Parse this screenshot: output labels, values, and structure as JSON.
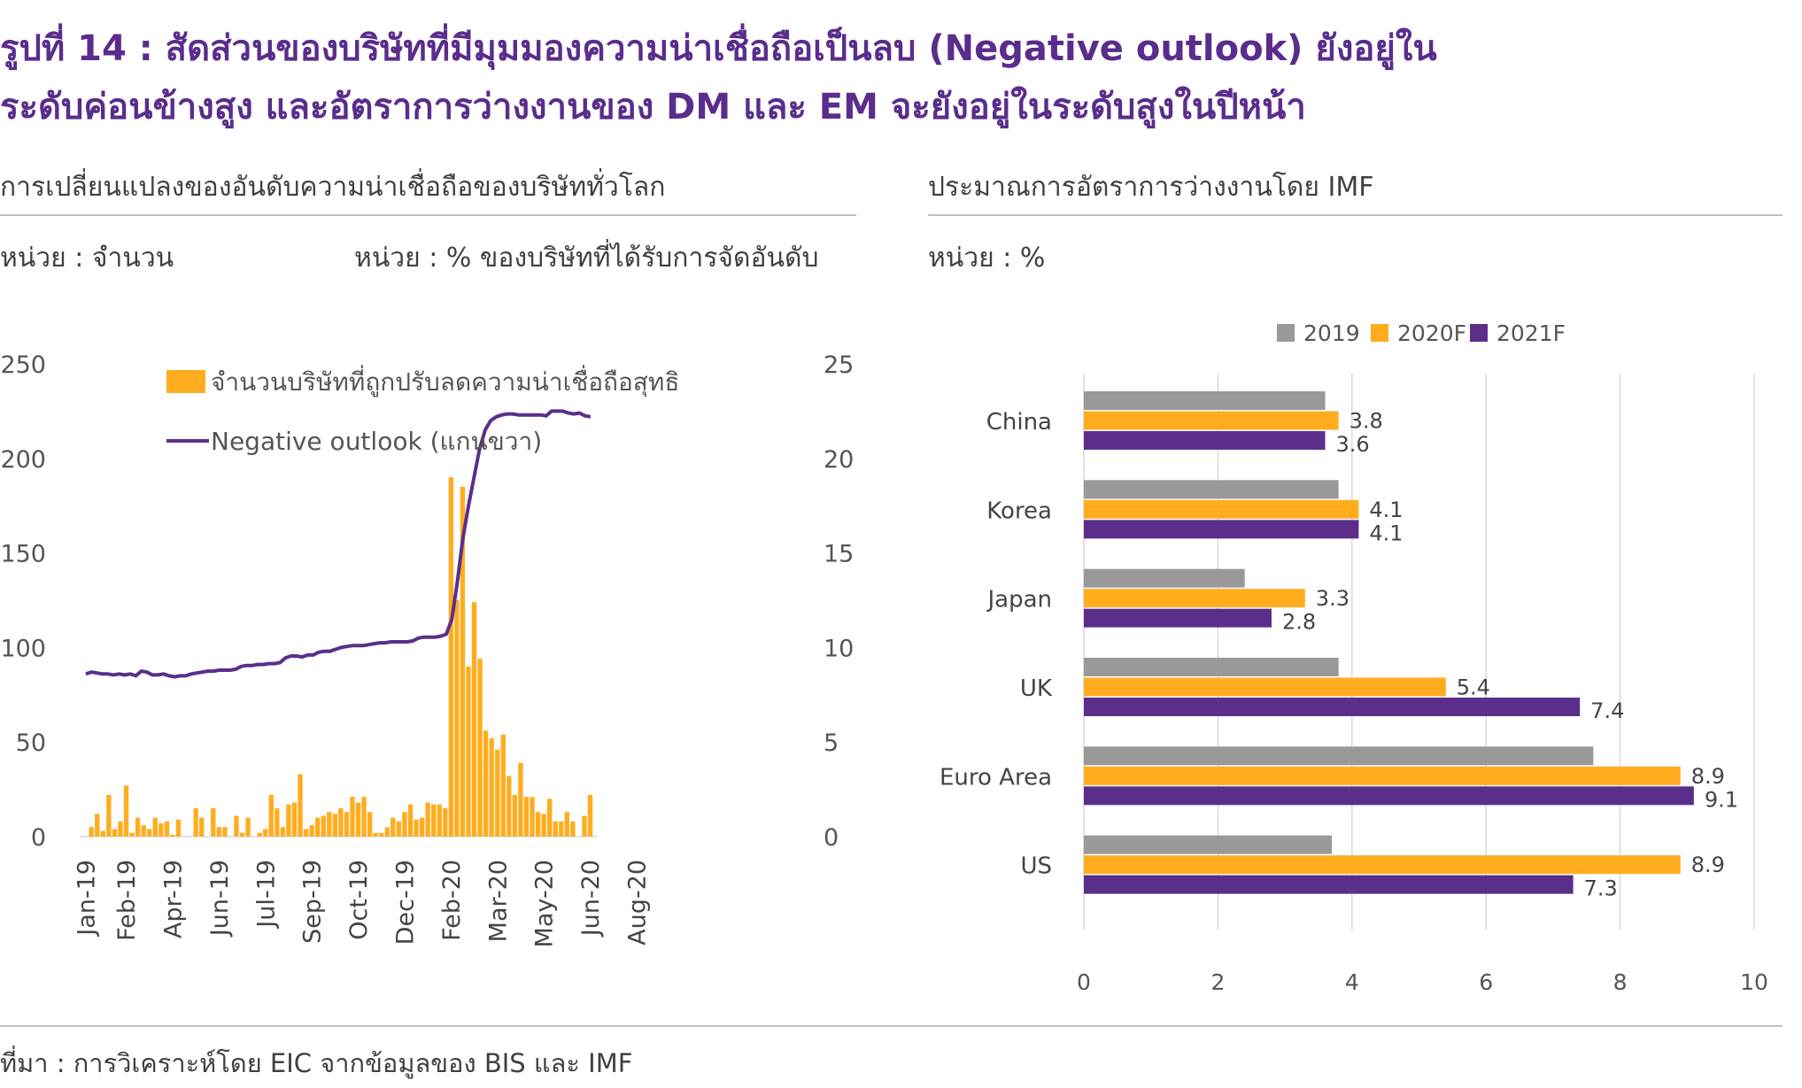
{
  "header": {
    "title_line1": "รูปที่ 14 : สัดส่วนของบริษัทที่มีมุมมองความน่าเชื่อถือเป็นลบ (Negative outlook) ยังอยู่ใน",
    "title_line2": "ระดับค่อนข้างสูง และอัตราการว่างงานของ DM และ EM จะยังอยู่ในระดับสูงในปีหน้า"
  },
  "left_panel": {
    "title": "การเปลี่ยนแปลงของอันดับความน่าเชื่อถือของบริษัททั่วโลก",
    "unit_left": "หน่วย : จำนวน",
    "unit_right": "หน่วย : % ของบริษัทที่ได้รับการจัดอันดับ"
  },
  "right_panel": {
    "title": "ประมาณการอัตราการว่างงานโดย IMF",
    "unit": "หน่วย : %"
  },
  "source": "ที่มา : การวิเคราะห์โดย EIC จากข้อมูลของ BIS และ IMF",
  "colors": {
    "gray": "#999999",
    "orange": "#ffad1f",
    "purple": "#5b2e8c",
    "title": "#5a2d8c"
  },
  "chart_data": [
    {
      "type": "bar",
      "legend": [
        "จำนวนบริษัทที่ถูกปรับลดความน่าเชื่อถือสุทธิ",
        "Negative outlook (แกนขวา)"
      ],
      "legend_position": "top-left",
      "x_tick_labels": [
        "Jan-19",
        "Feb-19",
        "Apr-19",
        "Jun-19",
        "Jul-19",
        "Sep-19",
        "Oct-19",
        "Dec-19",
        "Feb-20",
        "Mar-20",
        "May-20",
        "Jun-20",
        "Aug-20"
      ],
      "x_tick_index": [
        0,
        7,
        15,
        23,
        31,
        39,
        47,
        55,
        63,
        71,
        79,
        87,
        95
      ],
      "y_left": {
        "ticks": [
          "0",
          "50",
          "100",
          "150",
          "200",
          "250"
        ],
        "range": [
          0,
          250
        ]
      },
      "y_right": {
        "ticks": [
          "0",
          "5",
          "10",
          "15",
          "20",
          "25"
        ],
        "range": [
          0,
          25
        ]
      },
      "series": [
        {
          "chart_type": "bar",
          "axis": "left",
          "values": [
            0,
            5,
            12,
            3,
            22,
            4,
            8,
            27,
            2,
            10,
            6,
            4,
            10,
            7,
            8,
            1,
            9,
            0,
            0,
            15,
            10,
            0,
            15,
            5,
            5,
            0,
            11,
            2,
            10,
            0,
            2,
            4,
            22,
            15,
            5,
            17,
            18,
            33,
            4,
            6,
            10,
            11,
            13,
            12,
            15,
            13,
            21,
            18,
            21,
            13,
            2,
            2,
            5,
            10,
            8,
            13,
            17,
            9,
            10,
            18,
            17,
            17,
            15,
            190,
            125,
            185,
            90,
            124,
            94,
            56,
            52,
            46,
            54,
            32,
            22,
            39,
            21,
            21,
            13,
            12,
            20,
            8,
            8,
            13,
            8,
            0,
            11,
            22
          ]
        },
        {
          "chart_type": "line",
          "axis": "right",
          "values": [
            8.6,
            8.7,
            8.65,
            8.6,
            8.6,
            8.55,
            8.6,
            8.55,
            8.6,
            8.5,
            8.75,
            8.7,
            8.55,
            8.55,
            8.6,
            8.5,
            8.45,
            8.5,
            8.5,
            8.6,
            8.65,
            8.7,
            8.75,
            8.75,
            8.8,
            8.8,
            8.8,
            8.85,
            9.0,
            9.05,
            9.05,
            9.1,
            9.1,
            9.15,
            9.15,
            9.2,
            9.45,
            9.55,
            9.55,
            9.5,
            9.6,
            9.6,
            9.75,
            9.8,
            9.8,
            9.9,
            10.0,
            10.05,
            10.1,
            10.1,
            10.1,
            10.15,
            10.2,
            10.25,
            10.25,
            10.3,
            10.3,
            10.3,
            10.3,
            10.35,
            10.5,
            10.55,
            10.55,
            10.55,
            10.6,
            10.7,
            11.5,
            13.5,
            15.8,
            17.5,
            19.0,
            20.5,
            21.5,
            22.0,
            22.2,
            22.3,
            22.35,
            22.35,
            22.3,
            22.3,
            22.3,
            22.3,
            22.3,
            22.25,
            22.5,
            22.5,
            22.5,
            22.4,
            22.35,
            22.4,
            22.25,
            22.2
          ]
        }
      ]
    },
    {
      "type": "bar",
      "orientation": "horizontal",
      "categories": [
        "China",
        "Korea",
        "Japan",
        "UK",
        "Euro Area",
        "US"
      ],
      "series": [
        {
          "name": "2019",
          "values": [
            3.6,
            3.8,
            2.4,
            3.8,
            7.6,
            3.7
          ]
        },
        {
          "name": "2020F",
          "values": [
            3.8,
            4.1,
            3.3,
            5.4,
            8.9,
            8.9
          ]
        },
        {
          "name": "2021F",
          "values": [
            3.6,
            4.1,
            2.8,
            7.4,
            9.1,
            7.3
          ]
        }
      ],
      "x_ticks": [
        "0",
        "2",
        "4",
        "6",
        "8",
        "10"
      ],
      "xlim": [
        0,
        10
      ],
      "grid": true,
      "legend_position": "top",
      "data_labels_for": [
        "2020F",
        "2021F"
      ]
    }
  ]
}
